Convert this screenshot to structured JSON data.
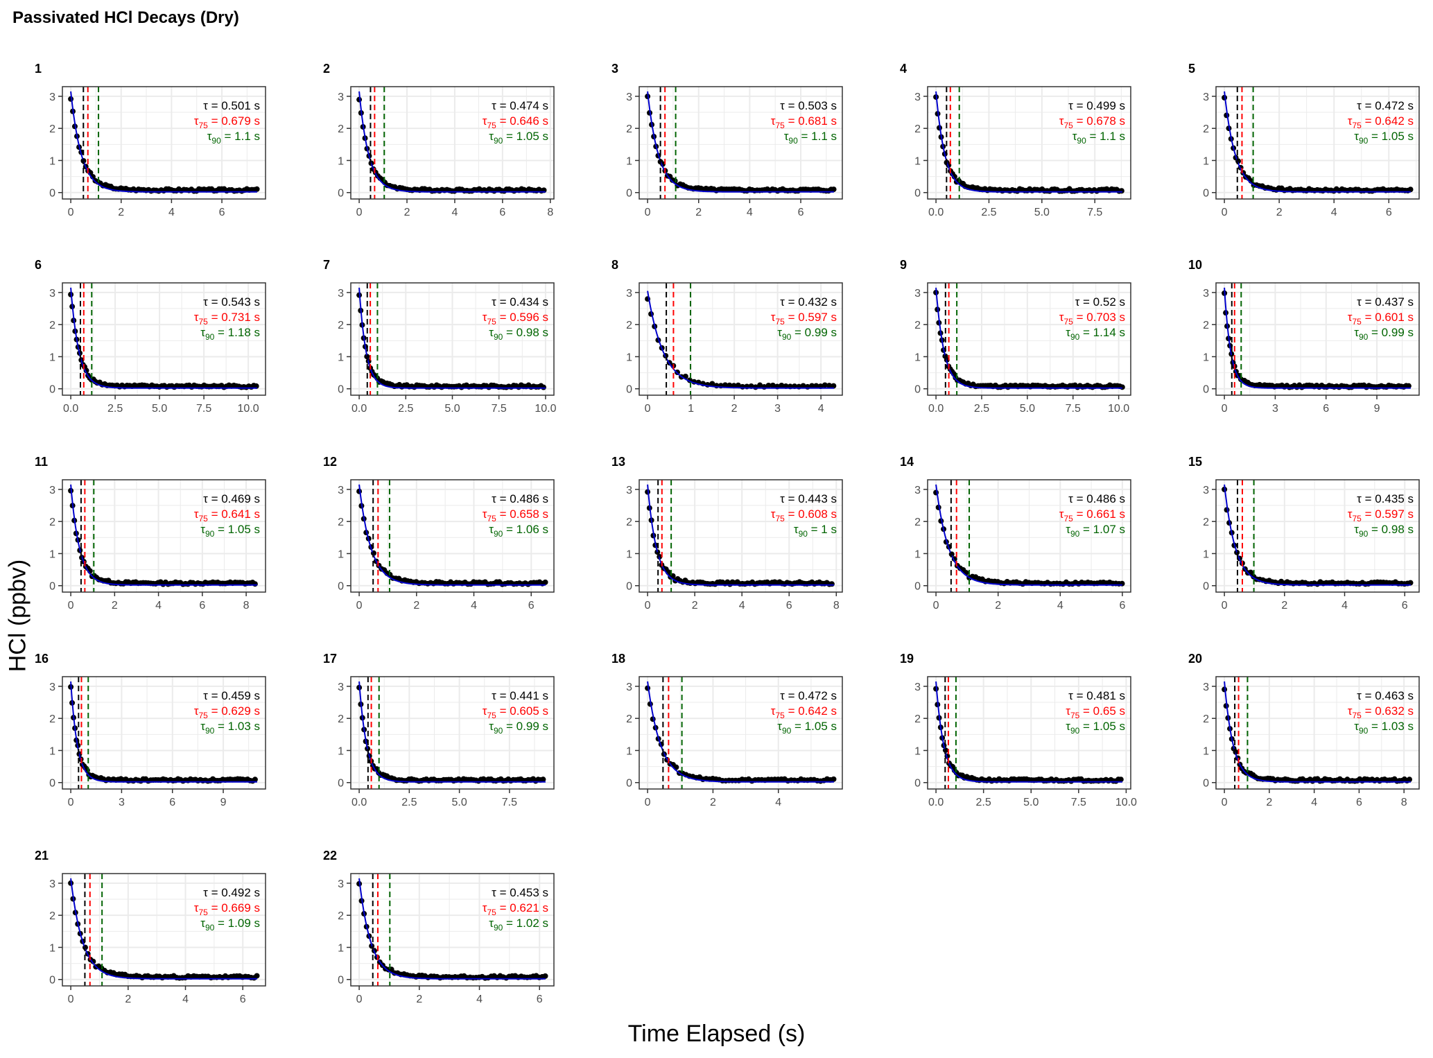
{
  "title": "Passivated HCl Decays (Dry)",
  "ylabel": "HCl (ppbv)",
  "xlabel": "Time Elapsed (s)",
  "colors": {
    "points": "#000000",
    "fit": "#0000cc",
    "tau": "#000000",
    "tau75": "#ff0000",
    "tau90": "#006400",
    "grid": "#ebebeb",
    "panel_border": "#333333"
  },
  "annotation_labels": {
    "tau": "τ",
    "tau75_sub": "75",
    "tau90_sub": "90",
    "unit": "s"
  },
  "chart_data": [
    {
      "type": "scatter",
      "panel": "1",
      "tau": 0.501,
      "tau_label": "0.501",
      "tau75": 0.679,
      "tau75_label": "0.679",
      "tau90": 1.1,
      "tau90_label": "1.1",
      "xlim": [
        0,
        7.4
      ],
      "xticks": [
        0,
        2,
        4,
        6
      ],
      "xtick_labels": [
        "0",
        "2",
        "4",
        "6"
      ],
      "yticks": [
        0,
        1,
        2,
        3
      ],
      "ylim": [
        -0.2,
        3.3
      ],
      "y0": 2.95,
      "baseline": 0.05
    },
    {
      "type": "scatter",
      "panel": "2",
      "tau": 0.474,
      "tau_label": "0.474",
      "tau75": 0.646,
      "tau75_label": "0.646",
      "tau90": 1.05,
      "tau90_label": "1.05",
      "xlim": [
        0,
        7.8
      ],
      "xticks": [
        0,
        2,
        4,
        6,
        8
      ],
      "xtick_labels": [
        "0",
        "2",
        "4",
        "6",
        "8"
      ],
      "yticks": [
        0,
        1,
        2,
        3
      ],
      "ylim": [
        -0.2,
        3.3
      ],
      "y0": 2.95,
      "baseline": 0.05
    },
    {
      "type": "scatter",
      "panel": "3",
      "tau": 0.503,
      "tau_label": "0.503",
      "tau75": 0.681,
      "tau75_label": "0.681",
      "tau90": 1.1,
      "tau90_label": "1.1",
      "xlim": [
        0,
        7.3
      ],
      "xticks": [
        0,
        2,
        4,
        6
      ],
      "xtick_labels": [
        "0",
        "2",
        "4",
        "6"
      ],
      "yticks": [
        0,
        1,
        2,
        3
      ],
      "ylim": [
        -0.2,
        3.3
      ],
      "y0": 2.95,
      "baseline": 0.05
    },
    {
      "type": "scatter",
      "panel": "4",
      "tau": 0.499,
      "tau_label": "0.499",
      "tau75": 0.678,
      "tau75_label": "0.678",
      "tau90": 1.1,
      "tau90_label": "1.1",
      "xlim": [
        0,
        8.8
      ],
      "xticks": [
        0,
        2.5,
        5,
        7.5
      ],
      "xtick_labels": [
        "0.0",
        "2.5",
        "5.0",
        "7.5"
      ],
      "yticks": [
        0,
        1,
        2,
        3
      ],
      "ylim": [
        -0.2,
        3.3
      ],
      "y0": 2.95,
      "baseline": 0.05
    },
    {
      "type": "scatter",
      "panel": "5",
      "tau": 0.472,
      "tau_label": "0.472",
      "tau75": 0.642,
      "tau75_label": "0.642",
      "tau90": 1.05,
      "tau90_label": "1.05",
      "xlim": [
        0,
        6.8
      ],
      "xticks": [
        0,
        2,
        4,
        6
      ],
      "xtick_labels": [
        "0",
        "2",
        "4",
        "6"
      ],
      "yticks": [
        0,
        1,
        2,
        3
      ],
      "ylim": [
        -0.2,
        3.3
      ],
      "y0": 2.95,
      "baseline": 0.05
    },
    {
      "type": "scatter",
      "panel": "6",
      "tau": 0.543,
      "tau_label": "0.543",
      "tau75": 0.731,
      "tau75_label": "0.731",
      "tau90": 1.18,
      "tau90_label": "1.18",
      "xlim": [
        0,
        10.5
      ],
      "xticks": [
        0,
        2.5,
        5,
        7.5,
        10
      ],
      "xtick_labels": [
        "0.0",
        "2.5",
        "5.0",
        "7.5",
        "10.0"
      ],
      "yticks": [
        0,
        1,
        2,
        3
      ],
      "ylim": [
        -0.2,
        3.3
      ],
      "y0": 2.95,
      "baseline": 0.05
    },
    {
      "type": "scatter",
      "panel": "7",
      "tau": 0.434,
      "tau_label": "0.434",
      "tau75": 0.596,
      "tau75_label": "0.596",
      "tau90": 0.98,
      "tau90_label": "0.98",
      "xlim": [
        0,
        10
      ],
      "xticks": [
        0,
        2.5,
        5,
        7.5,
        10
      ],
      "xtick_labels": [
        "0.0",
        "2.5",
        "5.0",
        "7.5",
        "10.0"
      ],
      "yticks": [
        0,
        1,
        2,
        3
      ],
      "ylim": [
        -0.2,
        3.3
      ],
      "y0": 2.95,
      "baseline": 0.05
    },
    {
      "type": "scatter",
      "panel": "8",
      "tau": 0.432,
      "tau_label": "0.432",
      "tau75": 0.597,
      "tau75_label": "0.597",
      "tau90": 0.99,
      "tau90_label": "0.99",
      "xlim": [
        0,
        4.3
      ],
      "xticks": [
        0,
        1,
        2,
        3,
        4
      ],
      "xtick_labels": [
        "0",
        "1",
        "2",
        "3",
        "4"
      ],
      "yticks": [
        0,
        1,
        2,
        3
      ],
      "ylim": [
        -0.2,
        3.3
      ],
      "y0": 2.85,
      "baseline": 0.05
    },
    {
      "type": "scatter",
      "panel": "9",
      "tau": 0.52,
      "tau_label": "0.52",
      "tau75": 0.703,
      "tau75_label": "0.703",
      "tau90": 1.14,
      "tau90_label": "1.14",
      "xlim": [
        0,
        10.2
      ],
      "xticks": [
        0,
        2.5,
        5,
        7.5,
        10
      ],
      "xtick_labels": [
        "0.0",
        "2.5",
        "5.0",
        "7.5",
        "10.0"
      ],
      "yticks": [
        0,
        1,
        2,
        3
      ],
      "ylim": [
        -0.2,
        3.3
      ],
      "y0": 2.95,
      "baseline": 0.05
    },
    {
      "type": "scatter",
      "panel": "10",
      "tau": 0.437,
      "tau_label": "0.437",
      "tau75": 0.601,
      "tau75_label": "0.601",
      "tau90": 0.99,
      "tau90_label": "0.99",
      "xlim": [
        0,
        11
      ],
      "xticks": [
        0,
        3,
        6,
        9
      ],
      "xtick_labels": [
        "0",
        "3",
        "6",
        "9"
      ],
      "yticks": [
        0,
        1,
        2,
        3
      ],
      "ylim": [
        -0.2,
        3.3
      ],
      "y0": 2.95,
      "baseline": 0.05
    },
    {
      "type": "scatter",
      "panel": "11",
      "tau": 0.469,
      "tau_label": "0.469",
      "tau75": 0.641,
      "tau75_label": "0.641",
      "tau90": 1.05,
      "tau90_label": "1.05",
      "xlim": [
        0,
        8.5
      ],
      "xticks": [
        0,
        2,
        4,
        6,
        8
      ],
      "xtick_labels": [
        "0",
        "2",
        "4",
        "6",
        "8"
      ],
      "yticks": [
        0,
        1,
        2,
        3
      ],
      "ylim": [
        -0.2,
        3.3
      ],
      "y0": 2.95,
      "baseline": 0.05
    },
    {
      "type": "scatter",
      "panel": "12",
      "tau": 0.486,
      "tau_label": "0.486",
      "tau75": 0.658,
      "tau75_label": "0.658",
      "tau90": 1.06,
      "tau90_label": "1.06",
      "xlim": [
        0,
        6.5
      ],
      "xticks": [
        0,
        2,
        4,
        6
      ],
      "xtick_labels": [
        "0",
        "2",
        "4",
        "6"
      ],
      "yticks": [
        0,
        1,
        2,
        3
      ],
      "ylim": [
        -0.2,
        3.3
      ],
      "y0": 2.95,
      "baseline": 0.05
    },
    {
      "type": "scatter",
      "panel": "13",
      "tau": 0.443,
      "tau_label": "0.443",
      "tau75": 0.608,
      "tau75_label": "0.608",
      "tau90": 1,
      "tau90_label": "1",
      "xlim": [
        0,
        7.9
      ],
      "xticks": [
        0,
        2,
        4,
        6,
        8
      ],
      "xtick_labels": [
        "0",
        "2",
        "4",
        "6",
        "8"
      ],
      "yticks": [
        0,
        1,
        2,
        3
      ],
      "ylim": [
        -0.2,
        3.3
      ],
      "y0": 2.95,
      "baseline": 0.05
    },
    {
      "type": "scatter",
      "panel": "14",
      "tau": 0.486,
      "tau_label": "0.486",
      "tau75": 0.661,
      "tau75_label": "0.661",
      "tau90": 1.07,
      "tau90_label": "1.07",
      "xlim": [
        0,
        6
      ],
      "xticks": [
        0,
        2,
        4,
        6
      ],
      "xtick_labels": [
        "0",
        "2",
        "4",
        "6"
      ],
      "yticks": [
        0,
        1,
        2,
        3
      ],
      "ylim": [
        -0.2,
        3.3
      ],
      "y0": 2.95,
      "baseline": 0.05
    },
    {
      "type": "scatter",
      "panel": "15",
      "tau": 0.435,
      "tau_label": "0.435",
      "tau75": 0.597,
      "tau75_label": "0.597",
      "tau90": 0.98,
      "tau90_label": "0.98",
      "xlim": [
        0,
        6.2
      ],
      "xticks": [
        0,
        2,
        4,
        6
      ],
      "xtick_labels": [
        "0",
        "2",
        "4",
        "6"
      ],
      "yticks": [
        0,
        1,
        2,
        3
      ],
      "ylim": [
        -0.2,
        3.3
      ],
      "y0": 2.95,
      "baseline": 0.05
    },
    {
      "type": "scatter",
      "panel": "16",
      "tau": 0.459,
      "tau_label": "0.459",
      "tau75": 0.629,
      "tau75_label": "0.629",
      "tau90": 1.03,
      "tau90_label": "1.03",
      "xlim": [
        0,
        11
      ],
      "xticks": [
        0,
        3,
        6,
        9
      ],
      "xtick_labels": [
        "0",
        "3",
        "6",
        "9"
      ],
      "yticks": [
        0,
        1,
        2,
        3
      ],
      "ylim": [
        -0.2,
        3.3
      ],
      "y0": 2.95,
      "baseline": 0.05
    },
    {
      "type": "scatter",
      "panel": "17",
      "tau": 0.441,
      "tau_label": "0.441",
      "tau75": 0.605,
      "tau75_label": "0.605",
      "tau90": 0.99,
      "tau90_label": "0.99",
      "xlim": [
        0,
        9.3
      ],
      "xticks": [
        0,
        2.5,
        5,
        7.5
      ],
      "xtick_labels": [
        "0.0",
        "2.5",
        "5.0",
        "7.5"
      ],
      "yticks": [
        0,
        1,
        2,
        3
      ],
      "ylim": [
        -0.2,
        3.3
      ],
      "y0": 2.95,
      "baseline": 0.05
    },
    {
      "type": "scatter",
      "panel": "18",
      "tau": 0.472,
      "tau_label": "0.472",
      "tau75": 0.642,
      "tau75_label": "0.642",
      "tau90": 1.05,
      "tau90_label": "1.05",
      "xlim": [
        0,
        5.7
      ],
      "xticks": [
        0,
        2,
        4
      ],
      "xtick_labels": [
        "0",
        "2",
        "4"
      ],
      "yticks": [
        0,
        1,
        2,
        3
      ],
      "ylim": [
        -0.2,
        3.3
      ],
      "y0": 2.95,
      "baseline": 0.05
    },
    {
      "type": "scatter",
      "panel": "19",
      "tau": 0.481,
      "tau_label": "0.481",
      "tau75": 0.65,
      "tau75_label": "0.65",
      "tau90": 1.05,
      "tau90_label": "1.05",
      "xlim": [
        0,
        9.8
      ],
      "xticks": [
        0,
        2.5,
        5,
        7.5,
        10
      ],
      "xtick_labels": [
        "0.0",
        "2.5",
        "5.0",
        "7.5",
        "10.0"
      ],
      "yticks": [
        0,
        1,
        2,
        3
      ],
      "ylim": [
        -0.2,
        3.3
      ],
      "y0": 2.95,
      "baseline": 0.05
    },
    {
      "type": "scatter",
      "panel": "20",
      "tau": 0.463,
      "tau_label": "0.463",
      "tau75": 0.632,
      "tau75_label": "0.632",
      "tau90": 1.03,
      "tau90_label": "1.03",
      "xlim": [
        0,
        8.3
      ],
      "xticks": [
        0,
        2,
        4,
        6,
        8
      ],
      "xtick_labels": [
        "0",
        "2",
        "4",
        "6",
        "8"
      ],
      "yticks": [
        0,
        1,
        2,
        3
      ],
      "ylim": [
        -0.2,
        3.3
      ],
      "y0": 2.95,
      "baseline": 0.05
    },
    {
      "type": "scatter",
      "panel": "21",
      "tau": 0.492,
      "tau_label": "0.492",
      "tau75": 0.669,
      "tau75_label": "0.669",
      "tau90": 1.09,
      "tau90_label": "1.09",
      "xlim": [
        0,
        6.5
      ],
      "xticks": [
        0,
        2,
        4,
        6
      ],
      "xtick_labels": [
        "0",
        "2",
        "4",
        "6"
      ],
      "yticks": [
        0,
        1,
        2,
        3
      ],
      "ylim": [
        -0.2,
        3.3
      ],
      "y0": 2.95,
      "baseline": 0.05
    },
    {
      "type": "scatter",
      "panel": "22",
      "tau": 0.453,
      "tau_label": "0.453",
      "tau75": 0.621,
      "tau75_label": "0.621",
      "tau90": 1.02,
      "tau90_label": "1.02",
      "xlim": [
        0,
        6.2
      ],
      "xticks": [
        0,
        2,
        4,
        6
      ],
      "xtick_labels": [
        "0",
        "2",
        "4",
        "6"
      ],
      "yticks": [
        0,
        1,
        2,
        3
      ],
      "ylim": [
        -0.2,
        3.3
      ],
      "y0": 2.95,
      "baseline": 0.05
    }
  ]
}
